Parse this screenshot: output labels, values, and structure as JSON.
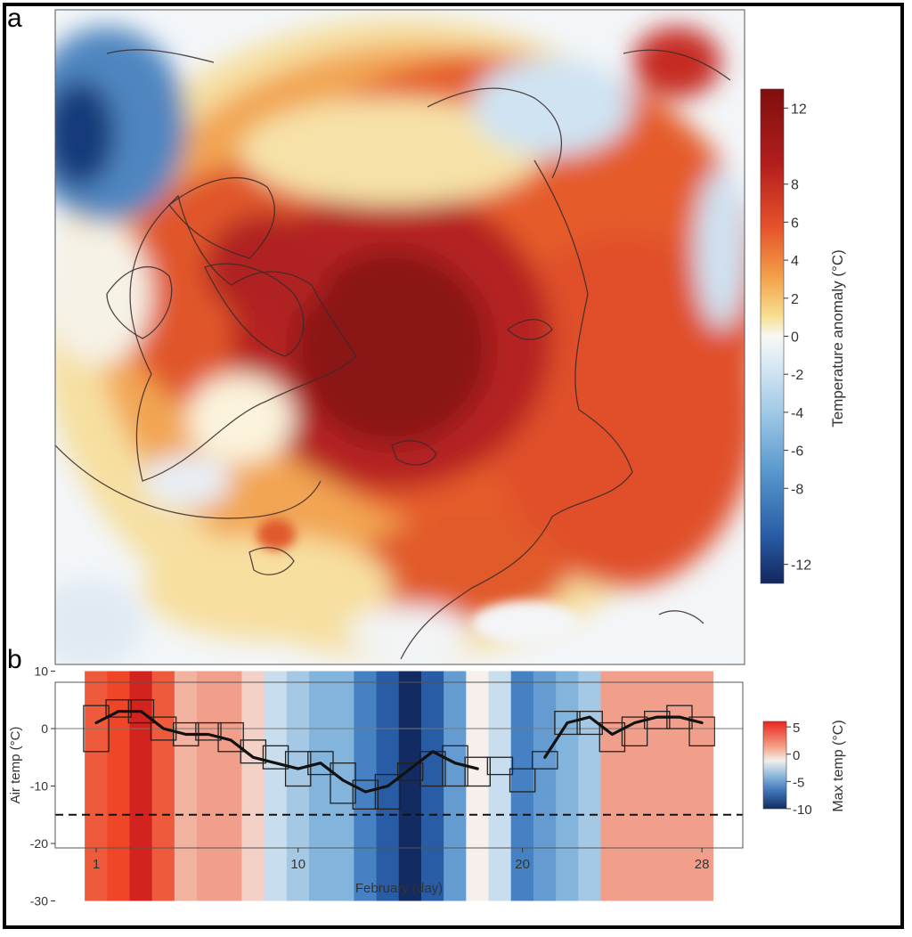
{
  "panels": {
    "a": {
      "letter": "a"
    },
    "b": {
      "letter": "b"
    }
  },
  "colors": {
    "red_dark": "#8b1414",
    "red": "#d7301f",
    "orange": "#f08a3c",
    "yellow": "#f7e3a2",
    "white": "#f7f7f7",
    "blue_light": "#c6dbef",
    "blue": "#4a85c3",
    "blue_dark": "#14306a"
  },
  "chart_data": [
    {
      "type": "heatmap",
      "panel": "a",
      "description_type": "polar stereographic map",
      "colorbar": {
        "label": "Temperature anomaly (°C)",
        "min": -13,
        "max": 13,
        "ticks": [
          12,
          8,
          6,
          4,
          2,
          0,
          -2,
          -4,
          -6,
          -8,
          -12
        ]
      }
    },
    {
      "type": "line",
      "panel": "b",
      "xlabel": "February (day)",
      "ylabel": "Air temp (°C)",
      "xticks": [
        1,
        10,
        20,
        28
      ],
      "yticks": [
        10,
        0,
        -10,
        -20,
        -30
      ],
      "xlim": [
        1,
        28
      ],
      "ylim": [
        -30,
        10
      ],
      "reference_line_y": 0,
      "dashed_line_y": -15,
      "daily_max_temp": [
        5,
        7,
        9,
        5,
        2,
        3,
        3,
        1,
        -2,
        -3,
        -4,
        -4,
        -6,
        -8,
        -10,
        -8,
        -5,
        0,
        -2,
        -6,
        -5,
        -4,
        -3,
        3,
        3,
        3,
        3,
        3
      ],
      "color_scale": {
        "label": "Max temp (°C)",
        "min": -10,
        "max": 6,
        "ticks": [
          5,
          0,
          -5,
          -10
        ]
      },
      "steps": [
        {
          "day": 1,
          "min": -4,
          "max": 4
        },
        {
          "day": 2,
          "min": 2,
          "max": 5
        },
        {
          "day": 3,
          "min": 1,
          "max": 5
        },
        {
          "day": 4,
          "min": -2,
          "max": 2
        },
        {
          "day": 5,
          "min": -3,
          "max": 1
        },
        {
          "day": 6,
          "min": -2,
          "max": 1
        },
        {
          "day": 7,
          "min": -4,
          "max": 1
        },
        {
          "day": 8,
          "min": -6,
          "max": -2
        },
        {
          "day": 9,
          "min": -7,
          "max": -3
        },
        {
          "day": 10,
          "min": -10,
          "max": -4
        },
        {
          "day": 11,
          "min": -8,
          "max": -4
        },
        {
          "day": 12,
          "min": -13,
          "max": -6
        },
        {
          "day": 13,
          "min": -14,
          "max": -9
        },
        {
          "day": 14,
          "min": -14,
          "max": -8
        },
        {
          "day": 15,
          "min": -9,
          "max": -6
        },
        {
          "day": 16,
          "min": -10,
          "max": -4
        },
        {
          "day": 17,
          "min": -10,
          "max": -3
        },
        {
          "day": 18,
          "min": -10,
          "max": -5
        },
        {
          "day": 19,
          "min": -8,
          "max": -5
        },
        {
          "day": 20,
          "min": -11,
          "max": -7
        },
        {
          "day": 21,
          "min": -7,
          "max": -4
        },
        {
          "day": 22,
          "min": -1,
          "max": 3
        },
        {
          "day": 23,
          "min": -1,
          "max": 3
        },
        {
          "day": 24,
          "min": -4,
          "max": 1
        },
        {
          "day": 25,
          "min": -3,
          "max": 2
        },
        {
          "day": 26,
          "min": 0,
          "max": 3
        },
        {
          "day": 27,
          "min": 0,
          "max": 4
        },
        {
          "day": 28,
          "min": -3,
          "max": 2
        }
      ],
      "series": [
        {
          "x": [
            1,
            2,
            3,
            4,
            5,
            6,
            7,
            8,
            9,
            10,
            11,
            12,
            13,
            14,
            15,
            16,
            17,
            18
          ],
          "y": [
            1,
            3,
            3,
            0,
            -1,
            -1,
            -2,
            -5,
            -6,
            -7,
            -6,
            -9,
            -11,
            -10,
            -7,
            -4,
            -6,
            -7
          ]
        },
        {
          "x": [
            21,
            22,
            23,
            24,
            25,
            26,
            27,
            28
          ],
          "y": [
            -5,
            1,
            2,
            -1,
            1,
            2,
            2,
            1
          ]
        }
      ]
    }
  ]
}
